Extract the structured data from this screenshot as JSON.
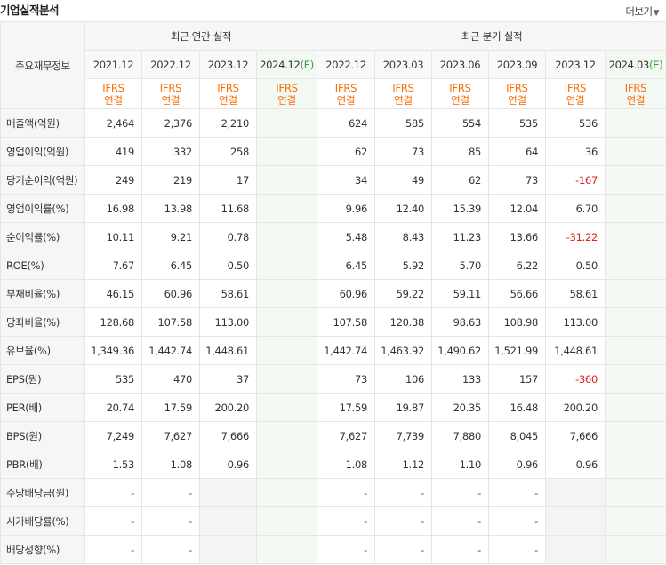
{
  "header": {
    "title": "기업실적분석",
    "more_label": "더보기",
    "more_arrow": "▼"
  },
  "table": {
    "corner_label": "주요재무정보",
    "annual_group": "최근 연간 실적",
    "quarter_group": "최근 분기 실적",
    "annual_periods": [
      "2021.12",
      "2022.12",
      "2023.12",
      "2024.12"
    ],
    "annual_est_mark": "(E)",
    "quarter_periods": [
      "2022.12",
      "2023.03",
      "2023.06",
      "2023.09",
      "2023.12",
      "2024.03"
    ],
    "quarter_est_mark": "(E)",
    "ifrs_line1": "IFRS",
    "ifrs_line2": "연결",
    "rows": [
      {
        "label": "매출액(억원)",
        "annual": [
          "2,464",
          "2,376",
          "2,210",
          ""
        ],
        "quarter": [
          "624",
          "585",
          "554",
          "535",
          "536",
          ""
        ]
      },
      {
        "label": "영업이익(억원)",
        "annual": [
          "419",
          "332",
          "258",
          ""
        ],
        "quarter": [
          "62",
          "73",
          "85",
          "64",
          "36",
          ""
        ]
      },
      {
        "label": "당기순이익(억원)",
        "annual": [
          "249",
          "219",
          "17",
          ""
        ],
        "quarter": [
          "34",
          "49",
          "62",
          "73",
          "-167",
          ""
        ]
      },
      {
        "label": "영업이익률(%)",
        "annual": [
          "16.98",
          "13.98",
          "11.68",
          ""
        ],
        "quarter": [
          "9.96",
          "12.40",
          "15.39",
          "12.04",
          "6.70",
          ""
        ]
      },
      {
        "label": "순이익률(%)",
        "annual": [
          "10.11",
          "9.21",
          "0.78",
          ""
        ],
        "quarter": [
          "5.48",
          "8.43",
          "11.23",
          "13.66",
          "-31.22",
          ""
        ]
      },
      {
        "label": "ROE(%)",
        "annual": [
          "7.67",
          "6.45",
          "0.50",
          ""
        ],
        "quarter": [
          "6.45",
          "5.92",
          "5.70",
          "6.22",
          "0.50",
          ""
        ]
      },
      {
        "label": "부채비율(%)",
        "annual": [
          "46.15",
          "60.96",
          "58.61",
          ""
        ],
        "quarter": [
          "60.96",
          "59.22",
          "59.11",
          "56.66",
          "58.61",
          ""
        ]
      },
      {
        "label": "당좌비율(%)",
        "annual": [
          "128.68",
          "107.58",
          "113.00",
          ""
        ],
        "quarter": [
          "107.58",
          "120.38",
          "98.63",
          "108.98",
          "113.00",
          ""
        ]
      },
      {
        "label": "유보율(%)",
        "annual": [
          "1,349.36",
          "1,442.74",
          "1,448.61",
          ""
        ],
        "quarter": [
          "1,442.74",
          "1,463.92",
          "1,490.62",
          "1,521.99",
          "1,448.61",
          ""
        ]
      },
      {
        "label": "EPS(원)",
        "annual": [
          "535",
          "470",
          "37",
          ""
        ],
        "quarter": [
          "73",
          "106",
          "133",
          "157",
          "-360",
          ""
        ]
      },
      {
        "label": "PER(배)",
        "annual": [
          "20.74",
          "17.59",
          "200.20",
          ""
        ],
        "quarter": [
          "17.59",
          "19.87",
          "20.35",
          "16.48",
          "200.20",
          ""
        ]
      },
      {
        "label": "BPS(원)",
        "annual": [
          "7,249",
          "7,627",
          "7,666",
          ""
        ],
        "quarter": [
          "7,627",
          "7,739",
          "7,880",
          "8,045",
          "7,666",
          ""
        ]
      },
      {
        "label": "PBR(배)",
        "annual": [
          "1.53",
          "1.08",
          "0.96",
          ""
        ],
        "quarter": [
          "1.08",
          "1.12",
          "1.10",
          "0.96",
          "0.96",
          ""
        ]
      },
      {
        "label": "주당배당금(원)",
        "annual": [
          "-",
          "-",
          "",
          ""
        ],
        "quarter": [
          "-",
          "-",
          "-",
          "-",
          "",
          ""
        ]
      },
      {
        "label": "시가배당률(%)",
        "annual": [
          "-",
          "-",
          "",
          ""
        ],
        "quarter": [
          "-",
          "-",
          "-",
          "-",
          "",
          ""
        ]
      },
      {
        "label": "배당성향(%)",
        "annual": [
          "-",
          "-",
          "",
          ""
        ],
        "quarter": [
          "-",
          "-",
          "-",
          "-",
          "",
          ""
        ]
      }
    ]
  },
  "colors": {
    "ifrs_orange": "#ff6a00",
    "negative_red": "#e02020",
    "estimate_green": "#3a9a3a"
  }
}
